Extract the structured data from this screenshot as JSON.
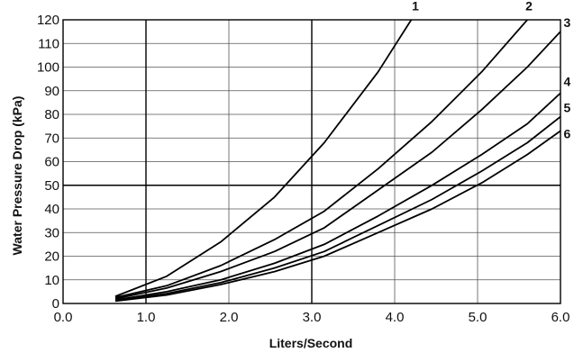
{
  "chart_data": {
    "type": "line",
    "title": "",
    "xlabel": "Liters/Second",
    "ylabel": "Water Pressure Drop (kPa)",
    "xlim": [
      0.0,
      6.0
    ],
    "ylim": [
      0,
      120
    ],
    "x_ticks": [
      "0.0",
      "1.0",
      "2.0",
      "3.0",
      "4.0",
      "5.0",
      "6.0"
    ],
    "y_ticks": [
      "0",
      "10",
      "20",
      "30",
      "40",
      "50",
      "60",
      "70",
      "80",
      "90",
      "100",
      "110",
      "120"
    ],
    "grid": true,
    "series": [
      {
        "name": "1",
        "points": [
          [
            0.63,
            3
          ],
          [
            1.25,
            11.5
          ],
          [
            1.9,
            26
          ],
          [
            2.55,
            45
          ],
          [
            3.15,
            68
          ],
          [
            3.8,
            98
          ],
          [
            4.2,
            120
          ]
        ]
      },
      {
        "name": "2",
        "points": [
          [
            0.63,
            2.5
          ],
          [
            1.25,
            7.5
          ],
          [
            1.9,
            16
          ],
          [
            2.55,
            27
          ],
          [
            3.15,
            39
          ],
          [
            3.8,
            57
          ],
          [
            4.45,
            77
          ],
          [
            5.05,
            98
          ],
          [
            5.6,
            120
          ]
        ]
      },
      {
        "name": "3",
        "points": [
          [
            0.63,
            2
          ],
          [
            1.25,
            6.5
          ],
          [
            1.9,
            13.5
          ],
          [
            2.55,
            22
          ],
          [
            3.15,
            32
          ],
          [
            3.8,
            48
          ],
          [
            4.45,
            64
          ],
          [
            5.05,
            82
          ],
          [
            5.6,
            100
          ],
          [
            6.0,
            115
          ]
        ]
      },
      {
        "name": "4",
        "points": [
          [
            0.63,
            1.5
          ],
          [
            1.25,
            5
          ],
          [
            1.9,
            10
          ],
          [
            2.55,
            17
          ],
          [
            3.15,
            25
          ],
          [
            3.8,
            37
          ],
          [
            4.45,
            50
          ],
          [
            5.05,
            63
          ],
          [
            5.6,
            76
          ],
          [
            6.0,
            89
          ]
        ]
      },
      {
        "name": "5",
        "points": [
          [
            0.63,
            1.2
          ],
          [
            1.25,
            4.2
          ],
          [
            1.9,
            8.8
          ],
          [
            2.55,
            15
          ],
          [
            3.15,
            22
          ],
          [
            3.8,
            33
          ],
          [
            4.45,
            44
          ],
          [
            5.05,
            56
          ],
          [
            5.6,
            68
          ],
          [
            6.0,
            79
          ]
        ]
      },
      {
        "name": "6",
        "points": [
          [
            0.63,
            1
          ],
          [
            1.25,
            3.6
          ],
          [
            1.9,
            8
          ],
          [
            2.55,
            13.5
          ],
          [
            3.15,
            20
          ],
          [
            3.8,
            30
          ],
          [
            4.45,
            40
          ],
          [
            5.05,
            51
          ],
          [
            5.6,
            63
          ],
          [
            6.0,
            73
          ]
        ]
      }
    ],
    "curve_label_positions": [
      {
        "name": "1",
        "x": 4.25,
        "y": 124
      },
      {
        "name": "2",
        "x": 5.62,
        "y": 124
      },
      {
        "name": "3",
        "x": 6.08,
        "y": 117
      },
      {
        "name": "4",
        "x": 6.08,
        "y": 92
      },
      {
        "name": "5",
        "x": 6.08,
        "y": 81
      },
      {
        "name": "6",
        "x": 6.08,
        "y": 70
      }
    ],
    "colors": {
      "line": "#000000",
      "grid": "#555555",
      "background": "#ffffff"
    }
  }
}
